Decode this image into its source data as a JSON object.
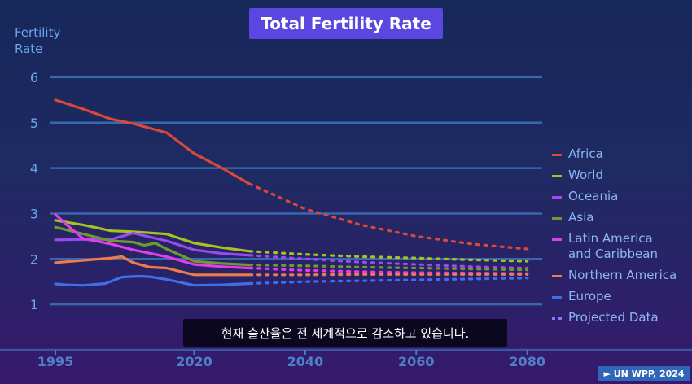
{
  "header": {
    "title": "Total Fertility Rate"
  },
  "subtitle": "현재 출산율은 전 세계적으로 감소하고 있습니다.",
  "source_badge": "► UN WPP, 2024",
  "colors": {
    "title_bg": "#5b47e0",
    "axis_text": "#6aa6ea",
    "grid": "#3f7ec8"
  },
  "chart_data": {
    "type": "line",
    "title": "Total Fertility Rate",
    "ylabel": "Fertility\nRate",
    "xlabel": "",
    "xlim": [
      1995,
      2080
    ],
    "ylim": [
      0,
      6
    ],
    "x_ticks": [
      1995,
      2020,
      2040,
      2060,
      2080
    ],
    "y_ticks": [
      1,
      2,
      3,
      4,
      5,
      6
    ],
    "grid": true,
    "legend_position": "right",
    "projected_label": "Projected Data",
    "series": [
      {
        "name": "Africa",
        "color": "#d9483b",
        "x": [
          1995,
          2000,
          2005,
          2009,
          2015,
          2020,
          2025,
          2030
        ],
        "y": [
          5.5,
          5.3,
          5.08,
          4.98,
          4.78,
          4.32,
          4.0,
          3.65
        ],
        "projected_x": [
          2030,
          2040,
          2050,
          2060,
          2070,
          2080
        ],
        "projected_y": [
          3.65,
          3.1,
          2.75,
          2.5,
          2.33,
          2.22
        ]
      },
      {
        "name": "World",
        "color": "#a6c21f",
        "x": [
          1995,
          2000,
          2005,
          2009,
          2015,
          2020,
          2025,
          2030
        ],
        "y": [
          2.85,
          2.75,
          2.62,
          2.6,
          2.55,
          2.35,
          2.25,
          2.17
        ],
        "projected_x": [
          2030,
          2040,
          2050,
          2060,
          2070,
          2080
        ],
        "projected_y": [
          2.17,
          2.1,
          2.05,
          2.02,
          1.98,
          1.95
        ]
      },
      {
        "name": "Oceania",
        "color": "#9a4af0",
        "x": [
          1995,
          2000,
          2005,
          2009,
          2015,
          2020,
          2025,
          2030
        ],
        "y": [
          2.42,
          2.43,
          2.43,
          2.57,
          2.4,
          2.2,
          2.12,
          2.08
        ],
        "projected_x": [
          2030,
          2040,
          2050,
          2060,
          2070,
          2080
        ],
        "projected_y": [
          2.08,
          2.0,
          1.93,
          1.88,
          1.83,
          1.8
        ]
      },
      {
        "name": "Asia",
        "color": "#6f9a2e",
        "x": [
          1995,
          2000,
          2005,
          2009,
          2011,
          2013,
          2015,
          2020,
          2025,
          2030
        ],
        "y": [
          2.7,
          2.55,
          2.4,
          2.37,
          2.3,
          2.35,
          2.22,
          1.95,
          1.9,
          1.87
        ],
        "projected_x": [
          2030,
          2040,
          2050,
          2060,
          2070,
          2080
        ],
        "projected_y": [
          1.87,
          1.85,
          1.82,
          1.8,
          1.78,
          1.76
        ]
      },
      {
        "name": "Latin America\nand Caribbean",
        "color": "#e23ee8",
        "x": [
          1995,
          1998,
          2000,
          2005,
          2009,
          2015,
          2020,
          2025,
          2030
        ],
        "y": [
          2.98,
          2.65,
          2.45,
          2.33,
          2.2,
          2.05,
          1.88,
          1.83,
          1.8
        ],
        "projected_x": [
          2030,
          2040,
          2050,
          2060,
          2070,
          2080
        ],
        "projected_y": [
          1.8,
          1.75,
          1.72,
          1.7,
          1.69,
          1.68
        ]
      },
      {
        "name": "Northern America",
        "color": "#f07b4a",
        "x": [
          1995,
          2000,
          2005,
          2007,
          2009,
          2012,
          2015,
          2020,
          2025,
          2030
        ],
        "y": [
          1.92,
          1.97,
          2.02,
          2.05,
          1.92,
          1.82,
          1.8,
          1.65,
          1.65,
          1.65
        ],
        "projected_x": [
          2030,
          2040,
          2050,
          2060,
          2070,
          2080
        ],
        "projected_y": [
          1.65,
          1.65,
          1.66,
          1.66,
          1.66,
          1.66
        ]
      },
      {
        "name": "Europe",
        "color": "#3f6fe6",
        "x": [
          1995,
          1997,
          2000,
          2004,
          2007,
          2010,
          2012,
          2015,
          2020,
          2025,
          2030
        ],
        "y": [
          1.45,
          1.43,
          1.42,
          1.46,
          1.6,
          1.62,
          1.61,
          1.55,
          1.42,
          1.43,
          1.46
        ],
        "projected_x": [
          2030,
          2040,
          2050,
          2060,
          2070,
          2080
        ],
        "projected_y": [
          1.46,
          1.5,
          1.52,
          1.54,
          1.56,
          1.58
        ]
      }
    ]
  }
}
